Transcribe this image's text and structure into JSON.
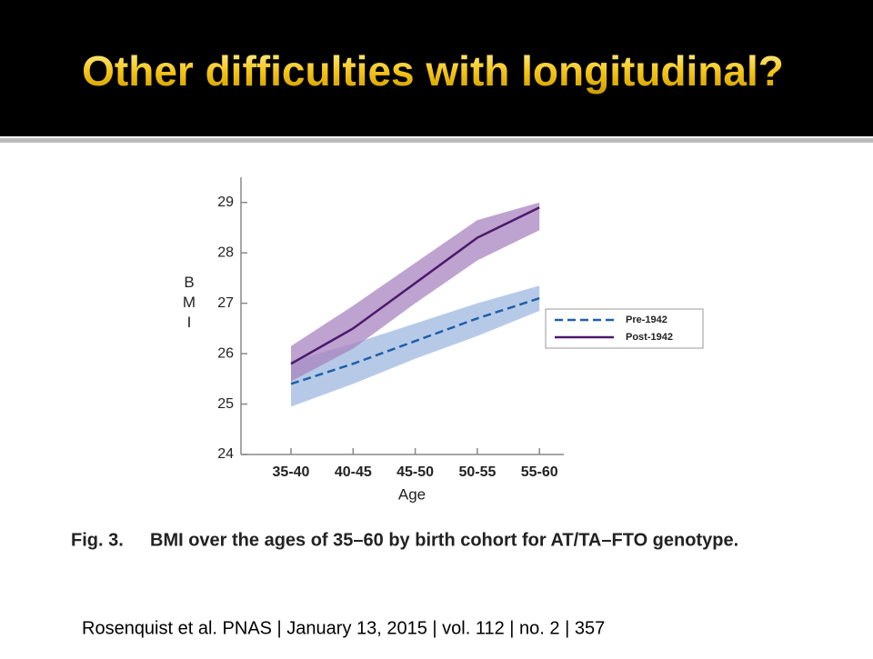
{
  "slide_title": "Other difficulties with longitudinal?",
  "caption": {
    "label": "Fig. 3.",
    "text": "BMI over the ages of 35–60 by birth cohort for AT/TA–FTO genotype."
  },
  "citation": "Rosenquist et al. PNAS | January 13, 2015 | vol. 112 | no. 2 | 357",
  "chart_data": {
    "type": "line",
    "x_label": "Age",
    "y_label": "BMI",
    "categories": [
      "35-40",
      "40-45",
      "45-50",
      "50-55",
      "55-60"
    ],
    "ylim": [
      24,
      29.5
    ],
    "yticks": [
      24,
      25,
      26,
      27,
      28,
      29
    ],
    "series": [
      {
        "name": "Pre-1942",
        "color": "#1f5fa8",
        "band_color": "#9db8e0",
        "dashed": true,
        "values": [
          25.4,
          25.8,
          26.25,
          26.7,
          27.1
        ],
        "lower": [
          24.95,
          25.4,
          25.9,
          26.35,
          26.85
        ],
        "upper": [
          25.85,
          26.2,
          26.6,
          27.0,
          27.35
        ]
      },
      {
        "name": "Post-1942",
        "color": "#4b1a6b",
        "band_color": "#a883bf",
        "dashed": false,
        "values": [
          25.8,
          26.5,
          27.4,
          28.3,
          28.9
        ],
        "lower": [
          25.45,
          26.1,
          27.0,
          27.85,
          28.45
        ],
        "upper": [
          26.15,
          26.95,
          27.8,
          28.65,
          29.0
        ]
      }
    ],
    "legend": "right"
  }
}
